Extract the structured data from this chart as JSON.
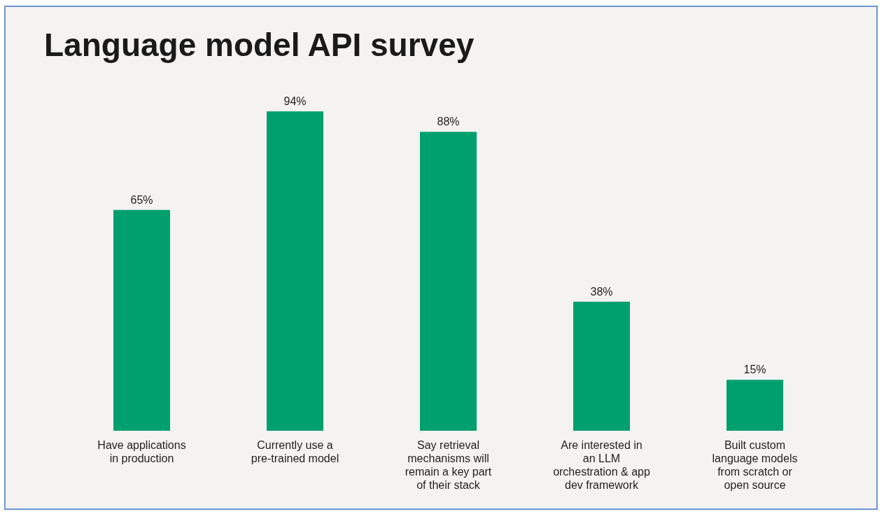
{
  "chart_data": {
    "type": "bar",
    "title": "Language model API survey",
    "categories": [
      "Have applications in production",
      "Currently use a pre-trained model",
      "Say retrieval mechanisms will remain a key part of their stack",
      "Are interested in an LLM orchestration & app dev framework",
      "Built custom language models from scratch or open source"
    ],
    "values": [
      65,
      94,
      88,
      38,
      15
    ],
    "value_labels": [
      "65%",
      "94%",
      "88%",
      "38%",
      "15%"
    ],
    "color": "#00a06e"
  }
}
